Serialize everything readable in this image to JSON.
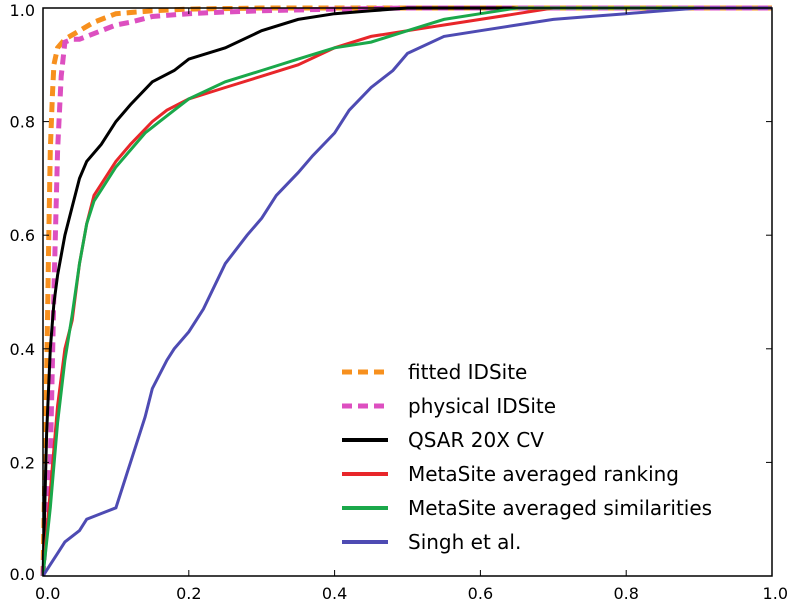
{
  "chart_data": {
    "type": "line",
    "title": "",
    "xlabel": "",
    "ylabel": "",
    "xlim": [
      0.0,
      1.0
    ],
    "ylim": [
      0.0,
      1.0
    ],
    "x_ticks": [
      "0.0",
      "0.2",
      "0.4",
      "0.6",
      "0.8",
      "1.0"
    ],
    "y_ticks": [
      "0.0",
      "0.2",
      "0.4",
      "0.6",
      "0.8",
      "1.0"
    ],
    "grid": false,
    "legend_position": "bottom-right",
    "series": [
      {
        "name": "fitted IDSite",
        "color": "#f7901e",
        "dashed": true,
        "x": [
          0.0,
          0.005,
          0.008,
          0.01,
          0.013,
          0.015,
          0.02,
          0.03,
          0.05,
          0.07,
          0.1,
          0.15,
          0.2,
          0.3,
          0.4,
          1.0
        ],
        "y": [
          0.0,
          0.35,
          0.6,
          0.75,
          0.85,
          0.9,
          0.93,
          0.945,
          0.96,
          0.975,
          0.99,
          0.995,
          0.998,
          1.0,
          1.0,
          1.0
        ]
      },
      {
        "name": "physical IDSite",
        "color": "#dd4fc0",
        "dashed": true,
        "x": [
          0.0,
          0.01,
          0.015,
          0.02,
          0.025,
          0.03,
          0.04,
          0.05,
          0.07,
          0.08,
          0.1,
          0.12,
          0.15,
          0.2,
          0.25,
          0.3,
          0.4,
          0.5,
          1.0
        ],
        "y": [
          0.0,
          0.2,
          0.5,
          0.75,
          0.88,
          0.94,
          0.945,
          0.945,
          0.955,
          0.96,
          0.97,
          0.975,
          0.985,
          0.99,
          0.993,
          0.995,
          0.998,
          1.0,
          1.0
        ]
      },
      {
        "name": "QSAR 20X CV",
        "color": "#000000",
        "dashed": false,
        "x": [
          0.0,
          0.005,
          0.01,
          0.015,
          0.02,
          0.03,
          0.04,
          0.05,
          0.06,
          0.08,
          0.1,
          0.12,
          0.15,
          0.18,
          0.2,
          0.25,
          0.3,
          0.35,
          0.4,
          0.45,
          0.5,
          0.6,
          0.7,
          0.8,
          1.0
        ],
        "y": [
          0.0,
          0.25,
          0.4,
          0.48,
          0.53,
          0.6,
          0.65,
          0.7,
          0.73,
          0.76,
          0.8,
          0.83,
          0.87,
          0.89,
          0.91,
          0.93,
          0.96,
          0.98,
          0.99,
          0.995,
          1.0,
          1.0,
          1.0,
          1.0,
          1.0
        ]
      },
      {
        "name": "MetaSite averaged ranking",
        "color": "#e8262a",
        "dashed": false,
        "x": [
          0.0,
          0.01,
          0.02,
          0.03,
          0.04,
          0.05,
          0.06,
          0.07,
          0.08,
          0.1,
          0.12,
          0.15,
          0.17,
          0.2,
          0.25,
          0.3,
          0.35,
          0.4,
          0.45,
          0.5,
          0.55,
          0.6,
          0.65,
          0.7,
          0.8,
          0.9,
          1.0
        ],
        "y": [
          0.0,
          0.15,
          0.3,
          0.4,
          0.45,
          0.55,
          0.62,
          0.67,
          0.69,
          0.73,
          0.76,
          0.8,
          0.82,
          0.84,
          0.86,
          0.88,
          0.9,
          0.93,
          0.95,
          0.96,
          0.97,
          0.98,
          0.99,
          1.0,
          1.0,
          1.0,
          1.0
        ]
      },
      {
        "name": "MetaSite averaged similarities",
        "color": "#1aa84a",
        "dashed": false,
        "x": [
          0.0,
          0.01,
          0.02,
          0.03,
          0.04,
          0.05,
          0.06,
          0.07,
          0.08,
          0.1,
          0.12,
          0.14,
          0.16,
          0.18,
          0.2,
          0.25,
          0.3,
          0.35,
          0.4,
          0.45,
          0.5,
          0.55,
          0.6,
          0.65,
          0.7,
          0.8,
          1.0
        ],
        "y": [
          0.0,
          0.12,
          0.27,
          0.38,
          0.46,
          0.55,
          0.62,
          0.66,
          0.68,
          0.72,
          0.75,
          0.78,
          0.8,
          0.82,
          0.84,
          0.87,
          0.89,
          0.91,
          0.93,
          0.94,
          0.96,
          0.98,
          0.99,
          1.0,
          1.0,
          1.0,
          1.0
        ]
      },
      {
        "name": "Singh et al.",
        "color": "#4e4bb3",
        "dashed": false,
        "x": [
          0.0,
          0.01,
          0.02,
          0.03,
          0.05,
          0.06,
          0.08,
          0.1,
          0.12,
          0.14,
          0.15,
          0.17,
          0.18,
          0.2,
          0.22,
          0.25,
          0.28,
          0.3,
          0.32,
          0.35,
          0.37,
          0.4,
          0.42,
          0.45,
          0.48,
          0.5,
          0.55,
          0.6,
          0.65,
          0.7,
          0.75,
          0.8,
          0.85,
          0.9,
          1.0
        ],
        "y": [
          0.0,
          0.02,
          0.04,
          0.06,
          0.08,
          0.1,
          0.11,
          0.12,
          0.2,
          0.28,
          0.33,
          0.38,
          0.4,
          0.43,
          0.47,
          0.55,
          0.6,
          0.63,
          0.67,
          0.71,
          0.74,
          0.78,
          0.82,
          0.86,
          0.89,
          0.92,
          0.95,
          0.96,
          0.97,
          0.98,
          0.985,
          0.99,
          0.995,
          1.0,
          1.0
        ]
      }
    ]
  }
}
